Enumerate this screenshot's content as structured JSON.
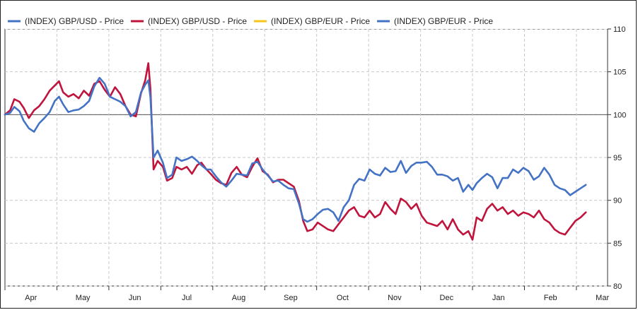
{
  "chart_data": {
    "type": "line",
    "title": "",
    "xlabel": "",
    "ylabel": "",
    "ylim": [
      80,
      110
    ],
    "y_ticks": [
      "80",
      "85",
      "90",
      "95",
      "100",
      "105",
      "110"
    ],
    "y_axis_side": "right",
    "reference_line": 100,
    "grid": true,
    "legend_position": "top-left",
    "x_months": [
      "Apr",
      "May",
      "Jun",
      "Jul",
      "Aug",
      "Sep",
      "Oct",
      "Nov",
      "Dec",
      "Jan",
      "Feb",
      "Mar"
    ],
    "x_domain": [
      0,
      11.6
    ],
    "series": [
      {
        "name": "(INDEX) GBP/USD - Price",
        "color": "#4472C4",
        "drawn": false,
        "points": []
      },
      {
        "name": "(INDEX) GBP/USD - Price",
        "color": "#C0143C",
        "drawn": true,
        "points": [
          [
            0.0,
            100.0
          ],
          [
            0.1,
            100.5
          ],
          [
            0.18,
            101.8
          ],
          [
            0.28,
            101.5
          ],
          [
            0.36,
            100.8
          ],
          [
            0.46,
            99.6
          ],
          [
            0.56,
            100.5
          ],
          [
            0.66,
            101.0
          ],
          [
            0.76,
            101.8
          ],
          [
            0.86,
            102.8
          ],
          [
            0.96,
            103.4
          ],
          [
            1.04,
            103.9
          ],
          [
            1.12,
            102.6
          ],
          [
            1.22,
            102.1
          ],
          [
            1.32,
            102.4
          ],
          [
            1.42,
            101.9
          ],
          [
            1.52,
            102.8
          ],
          [
            1.62,
            102.2
          ],
          [
            1.72,
            103.6
          ],
          [
            1.82,
            103.9
          ],
          [
            1.92,
            102.9
          ],
          [
            2.02,
            102.1
          ],
          [
            2.12,
            103.2
          ],
          [
            2.22,
            102.4
          ],
          [
            2.32,
            101.0
          ],
          [
            2.42,
            100.0
          ],
          [
            2.52,
            99.8
          ],
          [
            2.62,
            102.5
          ],
          [
            2.7,
            104.0
          ],
          [
            2.76,
            106.0
          ],
          [
            2.8,
            103.0
          ],
          [
            2.86,
            93.6
          ],
          [
            2.94,
            94.6
          ],
          [
            3.04,
            93.9
          ],
          [
            3.12,
            92.3
          ],
          [
            3.22,
            92.6
          ],
          [
            3.3,
            93.9
          ],
          [
            3.4,
            93.6
          ],
          [
            3.5,
            93.9
          ],
          [
            3.6,
            93.1
          ],
          [
            3.7,
            94.1
          ],
          [
            3.78,
            94.4
          ],
          [
            3.88,
            93.6
          ],
          [
            3.96,
            93.1
          ],
          [
            4.06,
            92.4
          ],
          [
            4.16,
            92.0
          ],
          [
            4.26,
            91.8
          ],
          [
            4.36,
            93.2
          ],
          [
            4.46,
            93.9
          ],
          [
            4.56,
            93.0
          ],
          [
            4.66,
            92.7
          ],
          [
            4.76,
            93.9
          ],
          [
            4.86,
            94.9
          ],
          [
            4.96,
            93.4
          ],
          [
            5.06,
            93.0
          ],
          [
            5.16,
            92.1
          ],
          [
            5.26,
            92.4
          ],
          [
            5.36,
            92.4
          ],
          [
            5.46,
            92.0
          ],
          [
            5.56,
            91.6
          ],
          [
            5.66,
            89.9
          ],
          [
            5.74,
            87.6
          ],
          [
            5.82,
            86.4
          ],
          [
            5.92,
            86.6
          ],
          [
            6.02,
            87.4
          ],
          [
            6.12,
            87.0
          ],
          [
            6.22,
            86.6
          ],
          [
            6.32,
            86.4
          ],
          [
            6.42,
            87.2
          ],
          [
            6.52,
            88.0
          ],
          [
            6.62,
            88.8
          ],
          [
            6.72,
            89.2
          ],
          [
            6.82,
            88.2
          ],
          [
            6.92,
            88.0
          ],
          [
            7.02,
            88.8
          ],
          [
            7.12,
            88.0
          ],
          [
            7.22,
            88.4
          ],
          [
            7.32,
            89.8
          ],
          [
            7.42,
            89.0
          ],
          [
            7.52,
            88.4
          ],
          [
            7.62,
            90.2
          ],
          [
            7.72,
            89.8
          ],
          [
            7.82,
            89.0
          ],
          [
            7.92,
            89.6
          ],
          [
            8.02,
            88.2
          ],
          [
            8.12,
            87.4
          ],
          [
            8.22,
            87.2
          ],
          [
            8.32,
            87.0
          ],
          [
            8.42,
            87.6
          ],
          [
            8.52,
            86.6
          ],
          [
            8.62,
            87.8
          ],
          [
            8.72,
            86.6
          ],
          [
            8.82,
            86.0
          ],
          [
            8.92,
            86.4
          ],
          [
            9.0,
            85.4
          ],
          [
            9.08,
            88.0
          ],
          [
            9.18,
            87.6
          ],
          [
            9.28,
            89.0
          ],
          [
            9.38,
            89.6
          ],
          [
            9.48,
            88.8
          ],
          [
            9.58,
            89.2
          ],
          [
            9.68,
            88.4
          ],
          [
            9.78,
            88.8
          ],
          [
            9.88,
            88.2
          ],
          [
            9.98,
            88.6
          ],
          [
            10.08,
            88.4
          ],
          [
            10.18,
            88.0
          ],
          [
            10.28,
            88.8
          ],
          [
            10.38,
            87.8
          ],
          [
            10.48,
            87.4
          ],
          [
            10.58,
            86.6
          ],
          [
            10.68,
            86.2
          ],
          [
            10.78,
            86.0
          ],
          [
            10.88,
            86.8
          ],
          [
            10.98,
            87.6
          ],
          [
            11.08,
            88.0
          ],
          [
            11.18,
            88.6
          ]
        ]
      },
      {
        "name": "(INDEX) GBP/EUR - Price",
        "color": "#F5C518",
        "drawn": false,
        "points": []
      },
      {
        "name": "(INDEX) GBP/EUR - Price",
        "color": "#4472C4",
        "drawn": true,
        "points": [
          [
            0.0,
            100.0
          ],
          [
            0.1,
            100.2
          ],
          [
            0.18,
            100.9
          ],
          [
            0.28,
            100.4
          ],
          [
            0.36,
            99.3
          ],
          [
            0.46,
            98.4
          ],
          [
            0.56,
            98.0
          ],
          [
            0.66,
            99.0
          ],
          [
            0.76,
            99.6
          ],
          [
            0.86,
            100.3
          ],
          [
            0.96,
            101.6
          ],
          [
            1.04,
            102.1
          ],
          [
            1.12,
            101.2
          ],
          [
            1.22,
            100.3
          ],
          [
            1.32,
            100.5
          ],
          [
            1.42,
            100.6
          ],
          [
            1.52,
            101.0
          ],
          [
            1.62,
            101.6
          ],
          [
            1.72,
            103.3
          ],
          [
            1.82,
            104.3
          ],
          [
            1.92,
            103.6
          ],
          [
            2.02,
            102.1
          ],
          [
            2.12,
            101.8
          ],
          [
            2.22,
            101.5
          ],
          [
            2.32,
            101.0
          ],
          [
            2.42,
            99.8
          ],
          [
            2.52,
            100.3
          ],
          [
            2.62,
            102.6
          ],
          [
            2.7,
            103.5
          ],
          [
            2.76,
            104.0
          ],
          [
            2.8,
            102.0
          ],
          [
            2.86,
            95.0
          ],
          [
            2.94,
            95.8
          ],
          [
            3.04,
            94.4
          ],
          [
            3.12,
            92.6
          ],
          [
            3.22,
            93.0
          ],
          [
            3.3,
            95.0
          ],
          [
            3.4,
            94.6
          ],
          [
            3.5,
            94.8
          ],
          [
            3.6,
            95.1
          ],
          [
            3.7,
            94.6
          ],
          [
            3.78,
            94.1
          ],
          [
            3.88,
            93.6
          ],
          [
            3.96,
            93.6
          ],
          [
            4.06,
            92.8
          ],
          [
            4.16,
            92.1
          ],
          [
            4.26,
            91.6
          ],
          [
            4.36,
            92.3
          ],
          [
            4.46,
            93.1
          ],
          [
            4.56,
            93.0
          ],
          [
            4.66,
            92.9
          ],
          [
            4.76,
            94.3
          ],
          [
            4.86,
            94.5
          ],
          [
            4.96,
            93.6
          ],
          [
            5.06,
            92.9
          ],
          [
            5.16,
            92.2
          ],
          [
            5.26,
            92.3
          ],
          [
            5.36,
            91.8
          ],
          [
            5.46,
            91.4
          ],
          [
            5.56,
            91.3
          ],
          [
            5.66,
            89.6
          ],
          [
            5.74,
            87.8
          ],
          [
            5.82,
            87.5
          ],
          [
            5.92,
            87.8
          ],
          [
            6.02,
            88.4
          ],
          [
            6.12,
            88.9
          ],
          [
            6.22,
            89.0
          ],
          [
            6.32,
            88.6
          ],
          [
            6.42,
            87.6
          ],
          [
            6.52,
            89.2
          ],
          [
            6.62,
            90.0
          ],
          [
            6.72,
            91.8
          ],
          [
            6.82,
            92.5
          ],
          [
            6.92,
            92.3
          ],
          [
            7.02,
            93.6
          ],
          [
            7.12,
            93.1
          ],
          [
            7.22,
            92.9
          ],
          [
            7.32,
            93.8
          ],
          [
            7.42,
            93.3
          ],
          [
            7.52,
            93.4
          ],
          [
            7.62,
            94.6
          ],
          [
            7.72,
            93.2
          ],
          [
            7.82,
            94.0
          ],
          [
            7.92,
            94.4
          ],
          [
            8.02,
            94.4
          ],
          [
            8.12,
            94.5
          ],
          [
            8.22,
            93.9
          ],
          [
            8.32,
            93.0
          ],
          [
            8.42,
            93.0
          ],
          [
            8.52,
            92.8
          ],
          [
            8.62,
            92.3
          ],
          [
            8.72,
            92.6
          ],
          [
            8.82,
            91.0
          ],
          [
            8.92,
            91.8
          ],
          [
            9.0,
            91.2
          ],
          [
            9.08,
            92.0
          ],
          [
            9.18,
            92.6
          ],
          [
            9.28,
            93.1
          ],
          [
            9.38,
            92.7
          ],
          [
            9.48,
            91.4
          ],
          [
            9.58,
            92.6
          ],
          [
            9.68,
            92.6
          ],
          [
            9.78,
            93.6
          ],
          [
            9.88,
            93.2
          ],
          [
            9.98,
            93.8
          ],
          [
            10.08,
            93.4
          ],
          [
            10.18,
            92.4
          ],
          [
            10.28,
            92.8
          ],
          [
            10.38,
            93.8
          ],
          [
            10.48,
            93.0
          ],
          [
            10.58,
            91.8
          ],
          [
            10.68,
            91.4
          ],
          [
            10.78,
            91.2
          ],
          [
            10.88,
            90.6
          ],
          [
            10.98,
            91.0
          ],
          [
            11.08,
            91.4
          ],
          [
            11.18,
            91.8
          ]
        ]
      }
    ]
  }
}
